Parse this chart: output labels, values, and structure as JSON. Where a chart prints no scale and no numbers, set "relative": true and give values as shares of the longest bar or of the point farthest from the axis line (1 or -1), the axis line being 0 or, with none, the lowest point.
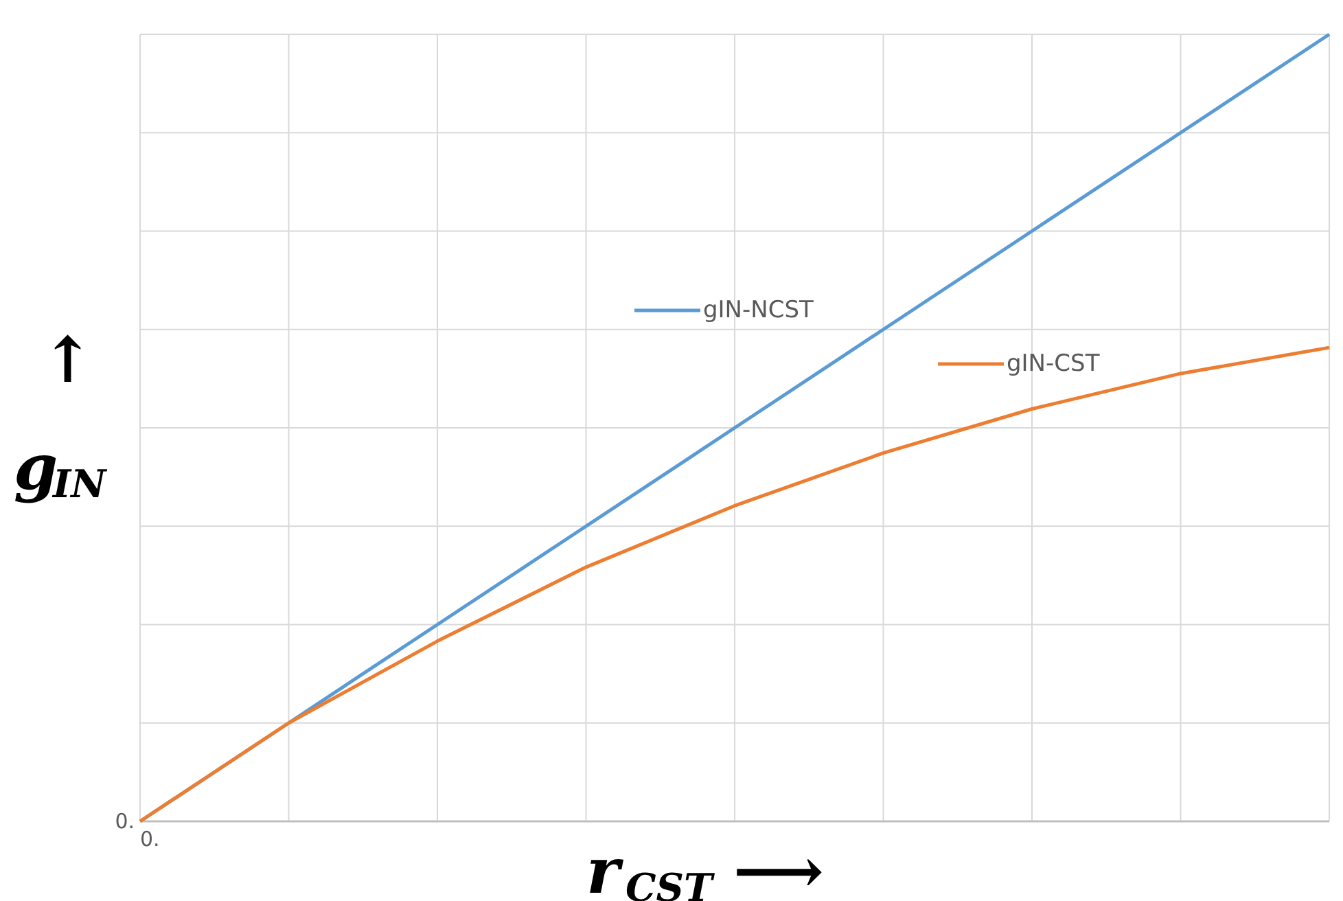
{
  "chart_data": {
    "type": "line",
    "relative": true,
    "xlabel": "r$_{CST}$ ⟶",
    "ylabel": "↑\ng$_{IN}$",
    "categories": [
      null,
      null,
      null,
      null,
      null,
      null,
      null,
      null,
      null
    ],
    "series": [
      {
        "name": "gIN-NCST",
        "color": "#5b9bd5",
        "values": [
          0,
          0.125,
          0.25,
          0.375,
          0.5,
          0.625,
          0.75,
          0.875,
          1
        ]
      },
      {
        "name": "gIN-CST",
        "color": "#ed7d31",
        "values": [
          0,
          0.125,
          0.229,
          0.323,
          0.401,
          0.468,
          0.524,
          0.569,
          0.602
        ]
      }
    ],
    "annotations": [
      "0.",
      "0."
    ],
    "grid": true,
    "legend": "right",
    "marker": "none",
    "line_style": "solid"
  }
}
